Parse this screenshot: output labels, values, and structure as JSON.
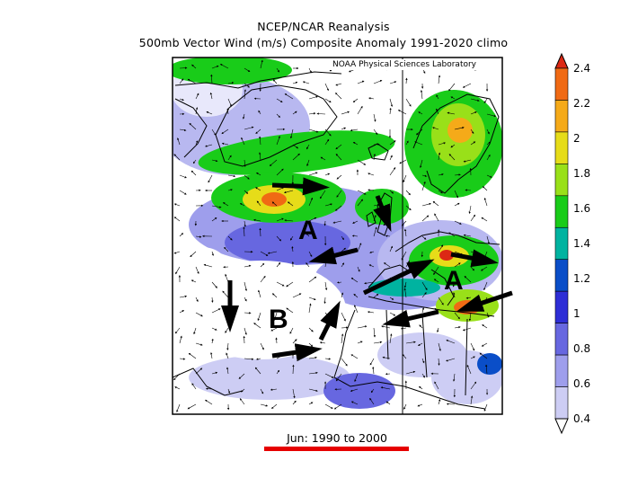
{
  "header": {
    "title_line1": "NCEP/NCAR Reanalysis",
    "title_line2": "500mb Vector Wind (m/s) Composite Anomaly 1991-2020 climo"
  },
  "map": {
    "credit": "NOAA Physical Sciences Laboratory",
    "region_labels": [
      "A",
      "A",
      "B"
    ],
    "colors": {
      "land_outline": "#000000",
      "frame": "#000000"
    }
  },
  "footer": {
    "period": "Jun: 1990 to 2000",
    "underline_color": "#e60000"
  },
  "colorbar": {
    "labels": [
      "2.4",
      "2.2",
      "2",
      "1.8",
      "1.6",
      "1.4",
      "1.2",
      "1",
      "0.8",
      "0.6",
      "0.4"
    ],
    "colors": [
      "#ffffff",
      "#cdcdf4",
      "#9e9eec",
      "#6767e0",
      "#2e2ed6",
      "#0a4ec8",
      "#00b3a0",
      "#19cc19",
      "#99e019",
      "#e6dc19",
      "#f5aa19",
      "#f06a14",
      "#dc2814"
    ]
  }
}
